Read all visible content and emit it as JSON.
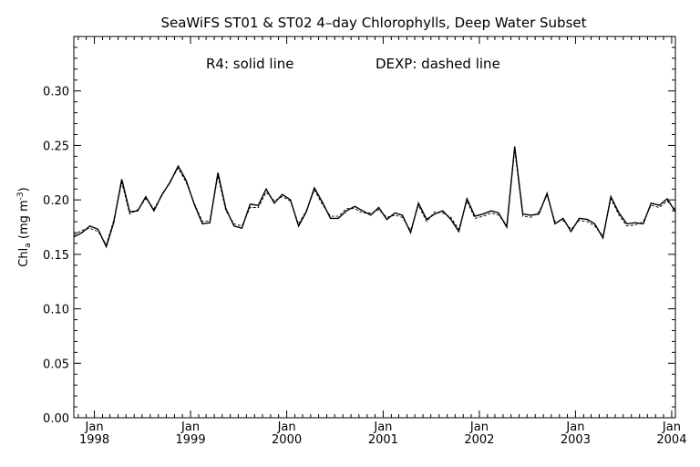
{
  "chart_data": {
    "type": "line",
    "title": "SeaWiFS ST01 & ST02 4–day Chlorophylls, Deep Water Subset",
    "legend_text_1": "R4: solid line",
    "legend_text_2": "DEXP: dashed line",
    "ylabel": "Chl",
    "ylabel_sub": "a",
    "ylabel_unit_prefix": " (mg m",
    "ylabel_unit_sup": "-3",
    "ylabel_unit_suffix": ")",
    "ylim": [
      0.0,
      0.35
    ],
    "xlim": [
      "1997-10-15",
      "2004-01-15"
    ],
    "yticks": [
      "0.00",
      "0.05",
      "0.10",
      "0.15",
      "0.20",
      "0.25",
      "0.30"
    ],
    "yticks_values": [
      0.0,
      0.05,
      0.1,
      0.15,
      0.2,
      0.25,
      0.3
    ],
    "xticks": [
      {
        "month": "Jan",
        "year": "1998",
        "date": "1998-01-01"
      },
      {
        "month": "Jan",
        "year": "1999",
        "date": "1999-01-01"
      },
      {
        "month": "Jan",
        "year": "2000",
        "date": "2000-01-01"
      },
      {
        "month": "Jan",
        "year": "2001",
        "date": "2001-01-01"
      },
      {
        "month": "Jan",
        "year": "2002",
        "date": "2002-01-01"
      },
      {
        "month": "Jan",
        "year": "2003",
        "date": "2003-01-01"
      },
      {
        "month": "Jan",
        "year": "2004",
        "date": "2004-01-01"
      }
    ],
    "grid": false,
    "series": [
      {
        "name": "R4",
        "style": "solid",
        "x": [
          "1997-10-15",
          "1997-11-15",
          "1997-12-15",
          "1998-01-15",
          "1998-02-15",
          "1998-03-15",
          "1998-04-15",
          "1998-05-15",
          "1998-06-15",
          "1998-07-15",
          "1998-08-15",
          "1998-09-15",
          "1998-10-15",
          "1998-11-15",
          "1998-12-15",
          "1999-01-15",
          "1999-02-15",
          "1999-03-15",
          "1999-04-15",
          "1999-05-15",
          "1999-06-15",
          "1999-07-15",
          "1999-08-15",
          "1999-09-15",
          "1999-10-15",
          "1999-11-15",
          "1999-12-15",
          "2000-01-15",
          "2000-02-15",
          "2000-03-15",
          "2000-04-15",
          "2000-05-15",
          "2000-06-15",
          "2000-07-15",
          "2000-08-15",
          "2000-09-15",
          "2000-10-15",
          "2000-11-15",
          "2000-12-15",
          "2001-01-15",
          "2001-02-15",
          "2001-03-15",
          "2001-04-15",
          "2001-05-15",
          "2001-06-15",
          "2001-07-15",
          "2001-08-15",
          "2001-09-15",
          "2001-10-15",
          "2001-11-15",
          "2001-12-15",
          "2002-01-15",
          "2002-02-15",
          "2002-03-15",
          "2002-04-15",
          "2002-05-15",
          "2002-06-15",
          "2002-07-15",
          "2002-08-15",
          "2002-09-15",
          "2002-10-15",
          "2002-11-15",
          "2002-12-15",
          "2003-01-15",
          "2003-02-15",
          "2003-03-15",
          "2003-04-15",
          "2003-05-15",
          "2003-06-15",
          "2003-07-15",
          "2003-08-15",
          "2003-09-15",
          "2003-10-15",
          "2003-11-15",
          "2003-12-15",
          "2004-01-15"
        ],
        "values": [
          0.166,
          0.17,
          0.176,
          0.173,
          0.157,
          0.179,
          0.219,
          0.189,
          0.19,
          0.203,
          0.19,
          0.205,
          0.216,
          0.231,
          0.218,
          0.196,
          0.178,
          0.179,
          0.225,
          0.192,
          0.176,
          0.174,
          0.196,
          0.195,
          0.21,
          0.197,
          0.205,
          0.2,
          0.176,
          0.189,
          0.211,
          0.198,
          0.183,
          0.183,
          0.19,
          0.194,
          0.19,
          0.186,
          0.193,
          0.182,
          0.188,
          0.186,
          0.17,
          0.197,
          0.182,
          0.187,
          0.19,
          0.182,
          0.171,
          0.201,
          0.185,
          0.187,
          0.19,
          0.188,
          0.175,
          0.249,
          0.187,
          0.186,
          0.187,
          0.206,
          0.178,
          0.183,
          0.171,
          0.183,
          0.182,
          0.178,
          0.165,
          0.203,
          0.188,
          0.178,
          0.179,
          0.178,
          0.197,
          0.195,
          0.201,
          0.189
        ]
      },
      {
        "name": "DEXP",
        "style": "dashed",
        "x": [
          "1997-10-15",
          "1997-11-15",
          "1997-12-15",
          "1998-01-15",
          "1998-02-15",
          "1998-03-15",
          "1998-04-15",
          "1998-05-15",
          "1998-06-15",
          "1998-07-15",
          "1998-08-15",
          "1998-09-15",
          "1998-10-15",
          "1998-11-15",
          "1998-12-15",
          "1999-01-15",
          "1999-02-15",
          "1999-03-15",
          "1999-04-15",
          "1999-05-15",
          "1999-06-15",
          "1999-07-15",
          "1999-08-15",
          "1999-09-15",
          "1999-10-15",
          "1999-11-15",
          "1999-12-15",
          "2000-01-15",
          "2000-02-15",
          "2000-03-15",
          "2000-04-15",
          "2000-05-15",
          "2000-06-15",
          "2000-07-15",
          "2000-08-15",
          "2000-09-15",
          "2000-10-15",
          "2000-11-15",
          "2000-12-15",
          "2001-01-15",
          "2001-02-15",
          "2001-03-15",
          "2001-04-15",
          "2001-05-15",
          "2001-06-15",
          "2001-07-15",
          "2001-08-15",
          "2001-09-15",
          "2001-10-15",
          "2001-11-15",
          "2001-12-15",
          "2002-01-15",
          "2002-02-15",
          "2002-03-15",
          "2002-04-15",
          "2002-05-15",
          "2002-06-15",
          "2002-07-15",
          "2002-08-15",
          "2002-09-15",
          "2002-10-15",
          "2002-11-15",
          "2002-12-15",
          "2003-01-15",
          "2003-02-15",
          "2003-03-15",
          "2003-04-15",
          "2003-05-15",
          "2003-06-15",
          "2003-07-15",
          "2003-08-15",
          "2003-09-15",
          "2003-10-15",
          "2003-11-15",
          "2003-12-15",
          "2004-01-15"
        ],
        "values": [
          0.168,
          0.172,
          0.174,
          0.171,
          0.159,
          0.181,
          0.216,
          0.187,
          0.191,
          0.201,
          0.192,
          0.204,
          0.217,
          0.229,
          0.216,
          0.197,
          0.18,
          0.181,
          0.222,
          0.19,
          0.178,
          0.176,
          0.193,
          0.193,
          0.207,
          0.199,
          0.203,
          0.199,
          0.178,
          0.19,
          0.209,
          0.196,
          0.185,
          0.185,
          0.192,
          0.192,
          0.188,
          0.188,
          0.191,
          0.184,
          0.186,
          0.184,
          0.172,
          0.195,
          0.18,
          0.189,
          0.188,
          0.184,
          0.173,
          0.199,
          0.183,
          0.185,
          0.188,
          0.186,
          0.177,
          0.246,
          0.185,
          0.184,
          0.189,
          0.204,
          0.18,
          0.181,
          0.173,
          0.181,
          0.18,
          0.176,
          0.167,
          0.201,
          0.186,
          0.176,
          0.177,
          0.18,
          0.195,
          0.193,
          0.199,
          0.191
        ]
      }
    ]
  }
}
